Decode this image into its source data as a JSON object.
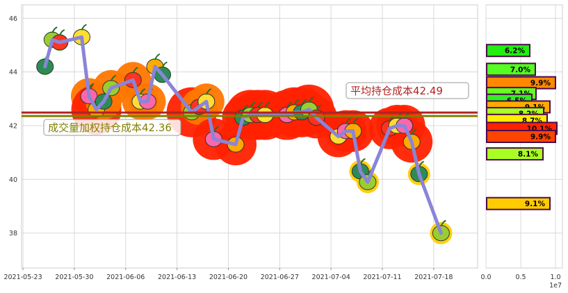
{
  "chart_data": [
    {
      "type": "line",
      "x_ticks": [
        "2021-05-23",
        "2021-05-30",
        "2021-06-06",
        "2021-06-13",
        "2021-06-20",
        "2021-06-27",
        "2021-07-04",
        "2021-07-11",
        "2021-07-18"
      ],
      "y_ticks": [
        "38",
        "40",
        "42",
        "44",
        "46"
      ],
      "ylim": [
        36.7,
        46.5
      ],
      "grid": true,
      "x": [
        "2021-05-26",
        "2021-05-27",
        "2021-05-28",
        "2021-05-31",
        "2021-06-01",
        "2021-06-02",
        "2021-06-03",
        "2021-06-04",
        "2021-06-07",
        "2021-06-08",
        "2021-06-09",
        "2021-06-10",
        "2021-06-11",
        "2021-06-15",
        "2021-06-16",
        "2021-06-17",
        "2021-06-18",
        "2021-06-21",
        "2021-06-22",
        "2021-06-23",
        "2021-06-24",
        "2021-06-25",
        "2021-06-28",
        "2021-06-29",
        "2021-06-30",
        "2021-07-01",
        "2021-07-02",
        "2021-07-05",
        "2021-07-06",
        "2021-07-07",
        "2021-07-08",
        "2021-07-09",
        "2021-07-12",
        "2021-07-13",
        "2021-07-14",
        "2021-07-15",
        "2021-07-16",
        "2021-07-19"
      ],
      "y": [
        44.2,
        45.2,
        45.1,
        45.3,
        43.1,
        42.6,
        42.9,
        43.4,
        43.7,
        42.9,
        42.9,
        44.2,
        43.9,
        42.5,
        42.7,
        42.9,
        41.5,
        41.3,
        42.3,
        42.4,
        42.4,
        42.4,
        42.4,
        42.5,
        42.5,
        42.6,
        42.3,
        41.6,
        41.8,
        41.8,
        40.3,
        39.9,
        41.9,
        42.0,
        42.0,
        41.4,
        40.2,
        38.0
      ],
      "horizontal_lines": [
        {
          "label": "平均持仓成本42.49",
          "value": 42.49,
          "color": "#b22222"
        },
        {
          "label": "成交量加权持仓成本42.36",
          "value": 42.36,
          "color": "#808000"
        }
      ]
    },
    {
      "type": "bar",
      "orientation": "horizontal",
      "x_ticks": [
        "0.0",
        "0.5",
        "1.0"
      ],
      "x_multiplier": "1e7",
      "xlim": [
        0,
        1.1
      ],
      "bars": [
        {
          "price": 44.8,
          "value": 0.62,
          "label": "6.2%",
          "color": "#22ee11"
        },
        {
          "price": 44.1,
          "value": 0.7,
          "label": "7.0%",
          "color": "#55ff22"
        },
        {
          "price": 43.6,
          "value": 0.99,
          "label": "9.9%",
          "color": "#ff8800"
        },
        {
          "price": 43.2,
          "value": 0.71,
          "label": "7.1%",
          "color": "#66ff22"
        },
        {
          "price": 42.95,
          "value": 0.65,
          "label": "6.5%",
          "color": "#33ee22"
        },
        {
          "price": 42.7,
          "value": 0.91,
          "label": "9.1%",
          "color": "#ffaa00"
        },
        {
          "price": 42.45,
          "value": 0.82,
          "label": "8.2%",
          "color": "#aaff22"
        },
        {
          "price": 42.2,
          "value": 0.87,
          "label": "8.7%",
          "color": "#ffee00"
        },
        {
          "price": 41.9,
          "value": 1.01,
          "label": "10.1%",
          "color": "#ff2200"
        },
        {
          "price": 41.6,
          "value": 0.99,
          "label": "9.9%",
          "color": "#ff4400"
        },
        {
          "price": 40.95,
          "value": 0.81,
          "label": "8.1%",
          "color": "#aaff22"
        },
        {
          "price": 39.1,
          "value": 0.91,
          "label": "9.1%",
          "color": "#ffcc00"
        }
      ]
    }
  ]
}
